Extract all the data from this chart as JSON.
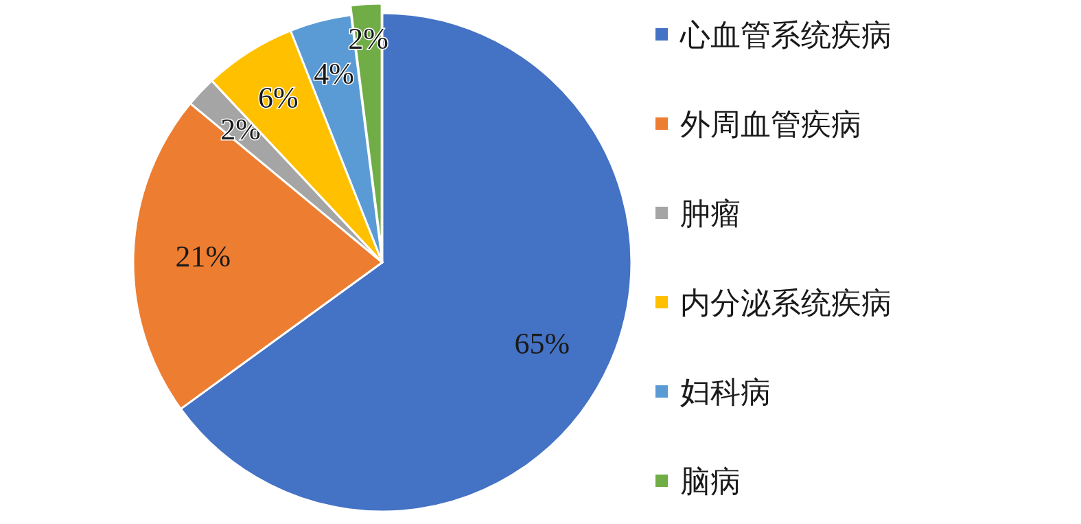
{
  "chart_data": {
    "type": "pie",
    "categories": [
      "心血管系统疾病",
      "外周血管疾病",
      "肿瘤",
      "内分泌系统疾病",
      "妇科病",
      "脑病"
    ],
    "values": [
      65,
      21,
      2,
      6,
      4,
      2
    ],
    "value_labels": [
      "65%",
      "21%",
      "2%",
      "6%",
      "4%",
      "2%"
    ],
    "colors": [
      "#4472c4",
      "#ed7d31",
      "#a5a5a5",
      "#ffc000",
      "#5b9bd5",
      "#70ad47"
    ],
    "legend": "right"
  }
}
